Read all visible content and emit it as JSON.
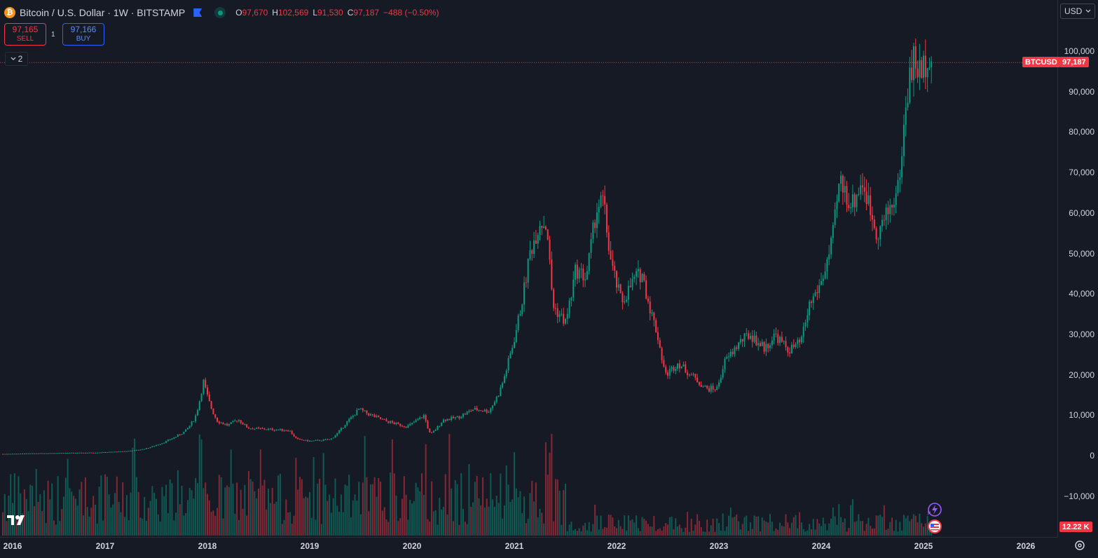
{
  "legend": {
    "symbol_icon": "bitcoin-icon",
    "title": "Bitcoin / U.S. Dollar · 1W · BITSTAMP",
    "open_key": "O",
    "open": "97,670",
    "high_key": "H",
    "high": "102,569",
    "low_key": "L",
    "low": "91,530",
    "close_key": "C",
    "close": "97,187",
    "change": "−488 (−0.50%)"
  },
  "trade": {
    "sell_price": "97,165",
    "sell_label": "SELL",
    "qty": "1",
    "buy_price": "97,166",
    "buy_label": "BUY"
  },
  "indicators_toggle": {
    "count": "2",
    "icon": "chevron-down-icon"
  },
  "currency": {
    "value": "USD",
    "icon": "chevron-down-icon"
  },
  "price_tags": {
    "symbol": "BTCUSD",
    "last_price": "97,187",
    "volume": "12.22 K"
  },
  "colors": {
    "background": "#161a25",
    "up": "#089981",
    "down": "#f23645",
    "accent": "#2962ff"
  },
  "chart_data": {
    "type": "candlestick",
    "series_name": "BTCUSD",
    "interval": "1W",
    "y_ticks": [
      "100,000",
      "90,000",
      "80,000",
      "70,000",
      "60,000",
      "50,000",
      "40,000",
      "30,000",
      "20,000",
      "10,000",
      "0",
      "−10,000"
    ],
    "y_range": [
      -15000,
      112000
    ],
    "x_ticks": [
      "2016",
      "2017",
      "2018",
      "2019",
      "2020",
      "2021",
      "2022",
      "2023",
      "2024",
      "2025",
      "2026"
    ],
    "x_range": [
      2016.0,
      2026.3
    ],
    "last_price": 97187,
    "anchors": [
      [
        2016.0,
        430
      ],
      [
        2016.5,
        650
      ],
      [
        2016.9,
        750
      ],
      [
        2017.2,
        1100
      ],
      [
        2017.35,
        1500
      ],
      [
        2017.5,
        2600
      ],
      [
        2017.65,
        4200
      ],
      [
        2017.78,
        6000
      ],
      [
        2017.88,
        9500
      ],
      [
        2017.96,
        18500
      ],
      [
        2018.05,
        11000
      ],
      [
        2018.1,
        8500
      ],
      [
        2018.2,
        7500
      ],
      [
        2018.3,
        9000
      ],
      [
        2018.4,
        6800
      ],
      [
        2018.6,
        6500
      ],
      [
        2018.8,
        6300
      ],
      [
        2018.88,
        4000
      ],
      [
        2019.0,
        3600
      ],
      [
        2019.2,
        4000
      ],
      [
        2019.35,
        8000
      ],
      [
        2019.48,
        11500
      ],
      [
        2019.6,
        10000
      ],
      [
        2019.75,
        8500
      ],
      [
        2019.95,
        7200
      ],
      [
        2020.12,
        10000
      ],
      [
        2020.18,
        5200
      ],
      [
        2020.3,
        8800
      ],
      [
        2020.45,
        9500
      ],
      [
        2020.6,
        11500
      ],
      [
        2020.75,
        11000
      ],
      [
        2020.85,
        15500
      ],
      [
        2020.95,
        24000
      ],
      [
        2021.05,
        35000
      ],
      [
        2021.15,
        50000
      ],
      [
        2021.25,
        58000
      ],
      [
        2021.32,
        57000
      ],
      [
        2021.38,
        37000
      ],
      [
        2021.5,
        33000
      ],
      [
        2021.6,
        46000
      ],
      [
        2021.7,
        44000
      ],
      [
        2021.8,
        61000
      ],
      [
        2021.87,
        63000
      ],
      [
        2021.95,
        47000
      ],
      [
        2022.05,
        38000
      ],
      [
        2022.18,
        44000
      ],
      [
        2022.25,
        45000
      ],
      [
        2022.4,
        30000
      ],
      [
        2022.48,
        20000
      ],
      [
        2022.6,
        23000
      ],
      [
        2022.75,
        19500
      ],
      [
        2022.88,
        16500
      ],
      [
        2022.98,
        16600
      ],
      [
        2023.05,
        23000
      ],
      [
        2023.2,
        28000
      ],
      [
        2023.3,
        30000
      ],
      [
        2023.45,
        26500
      ],
      [
        2023.55,
        30000
      ],
      [
        2023.68,
        26000
      ],
      [
        2023.8,
        28000
      ],
      [
        2023.88,
        37000
      ],
      [
        2024.0,
        43000
      ],
      [
        2024.1,
        52000
      ],
      [
        2024.18,
        68000
      ],
      [
        2024.3,
        62000
      ],
      [
        2024.4,
        68000
      ],
      [
        2024.55,
        55000
      ],
      [
        2024.65,
        60000
      ],
      [
        2024.75,
        66000
      ],
      [
        2024.84,
        90000
      ],
      [
        2024.9,
        98000
      ],
      [
        2024.98,
        94000
      ],
      [
        2025.05,
        101000
      ],
      [
        2025.08,
        97187
      ]
    ]
  }
}
